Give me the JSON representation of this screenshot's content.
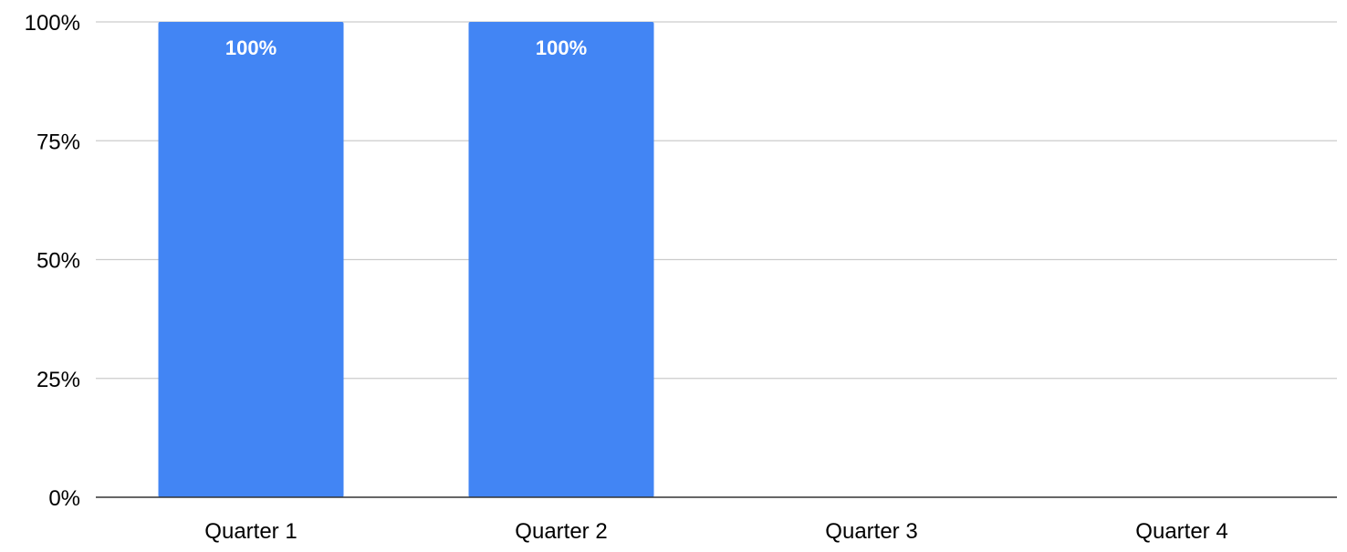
{
  "chart_data": {
    "type": "bar",
    "categories": [
      "Quarter 1",
      "Quarter 2",
      "Quarter 3",
      "Quarter 4"
    ],
    "series": [
      {
        "values": [
          100,
          100,
          0,
          0
        ],
        "data_labels": [
          "100%",
          "100%",
          "",
          ""
        ],
        "color": "#4285F4"
      }
    ],
    "ylim": [
      0,
      100
    ],
    "y_ticks": [
      {
        "value": 0,
        "label": "0%"
      },
      {
        "value": 25,
        "label": "25%"
      },
      {
        "value": 50,
        "label": "50%"
      },
      {
        "value": 75,
        "label": "75%"
      },
      {
        "value": 100,
        "label": "100%"
      }
    ],
    "grid": true,
    "legend": "none",
    "colors": {
      "bar": "#4285F4",
      "grid": "#cccccc",
      "axis": "#333333",
      "tick_text": "#000000",
      "data_label": "#ffffff"
    }
  }
}
